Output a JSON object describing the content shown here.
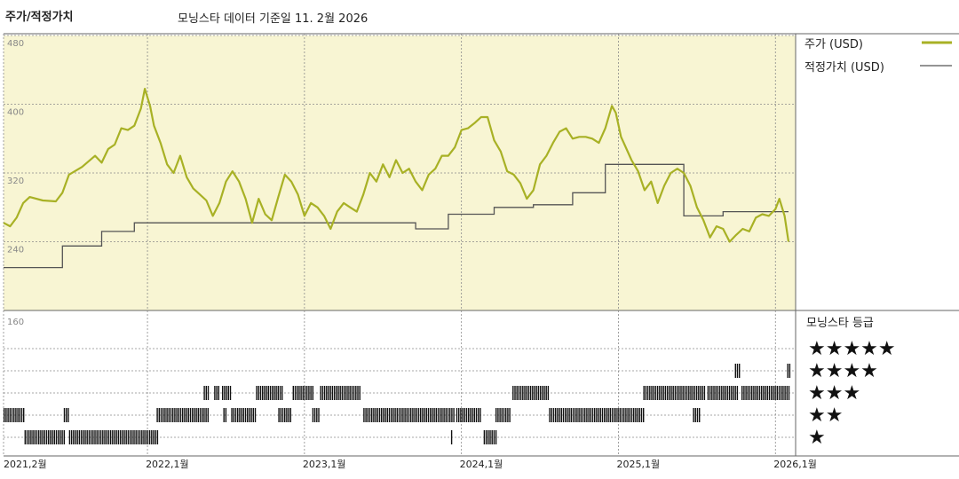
{
  "header": {
    "title": "주가/적정가치",
    "subtitle": "모닝스타 데이터 기준일 11. 2월 2026"
  },
  "legend": {
    "price_label": "주가 (USD)",
    "fair_label": "적정가치 (USD)",
    "rating_title": "모닝스타 등급"
  },
  "colors": {
    "plot_bg": "#f8f5d3",
    "price": "#a8b125",
    "fair": "#555555",
    "grid": "#888888",
    "rating_bar": "#111111"
  },
  "chart_data": {
    "type": "line",
    "x_unit": "months since 2021-02",
    "x_tick_labels": [
      "2021,2월",
      "2022,1월",
      "2023,1월",
      "2024,1월",
      "2025,1월",
      "2026,1월"
    ],
    "x_tick_positions": [
      0,
      11,
      23,
      35,
      47,
      59
    ],
    "y_tick_labels": [
      "480",
      "400",
      "320",
      "240",
      "160"
    ],
    "ylim": [
      160,
      480
    ],
    "series": [
      {
        "name": "주가 (USD)",
        "points": [
          [
            0,
            262
          ],
          [
            0.5,
            258
          ],
          [
            1,
            268
          ],
          [
            1.5,
            285
          ],
          [
            2,
            292
          ],
          [
            3,
            288
          ],
          [
            4,
            287
          ],
          [
            4.5,
            297
          ],
          [
            5,
            318
          ],
          [
            6,
            327
          ],
          [
            7,
            340
          ],
          [
            7.5,
            332
          ],
          [
            8,
            348
          ],
          [
            8.5,
            353
          ],
          [
            9,
            372
          ],
          [
            9.5,
            370
          ],
          [
            10,
            375
          ],
          [
            10.5,
            395
          ],
          [
            10.8,
            418
          ],
          [
            11.2,
            398
          ],
          [
            11.5,
            375
          ],
          [
            12,
            355
          ],
          [
            12.5,
            330
          ],
          [
            13,
            320
          ],
          [
            13.5,
            340
          ],
          [
            14,
            315
          ],
          [
            14.5,
            302
          ],
          [
            15,
            295
          ],
          [
            15.5,
            288
          ],
          [
            16,
            270
          ],
          [
            16.5,
            285
          ],
          [
            17,
            310
          ],
          [
            17.5,
            322
          ],
          [
            18,
            310
          ],
          [
            18.5,
            290
          ],
          [
            19,
            262
          ],
          [
            19.5,
            290
          ],
          [
            20,
            272
          ],
          [
            20.5,
            265
          ],
          [
            21,
            292
          ],
          [
            21.5,
            318
          ],
          [
            22,
            310
          ],
          [
            22.5,
            295
          ],
          [
            23,
            270
          ],
          [
            23.5,
            285
          ],
          [
            24,
            280
          ],
          [
            24.5,
            270
          ],
          [
            25,
            255
          ],
          [
            25.5,
            275
          ],
          [
            26,
            285
          ],
          [
            26.5,
            280
          ],
          [
            27,
            275
          ],
          [
            27.5,
            295
          ],
          [
            28,
            320
          ],
          [
            28.5,
            310
          ],
          [
            29,
            330
          ],
          [
            29.5,
            315
          ],
          [
            30,
            335
          ],
          [
            30.5,
            320
          ],
          [
            31,
            325
          ],
          [
            31.5,
            310
          ],
          [
            32,
            300
          ],
          [
            32.5,
            318
          ],
          [
            33,
            325
          ],
          [
            33.5,
            340
          ],
          [
            34,
            340
          ],
          [
            34.5,
            350
          ],
          [
            35,
            370
          ],
          [
            35.5,
            372
          ],
          [
            36,
            378
          ],
          [
            36.5,
            385
          ],
          [
            37,
            385
          ],
          [
            37.5,
            358
          ],
          [
            38,
            345
          ],
          [
            38.5,
            322
          ],
          [
            39,
            318
          ],
          [
            39.5,
            308
          ],
          [
            40,
            290
          ],
          [
            40.5,
            300
          ],
          [
            41,
            330
          ],
          [
            41.5,
            340
          ],
          [
            42,
            355
          ],
          [
            42.5,
            368
          ],
          [
            43,
            372
          ],
          [
            43.5,
            360
          ],
          [
            44,
            362
          ],
          [
            44.5,
            362
          ],
          [
            45,
            360
          ],
          [
            45.5,
            355
          ],
          [
            46,
            372
          ],
          [
            46.5,
            398
          ],
          [
            46.8,
            390
          ],
          [
            47.2,
            362
          ],
          [
            47.5,
            352
          ],
          [
            48,
            335
          ],
          [
            48.5,
            322
          ],
          [
            49,
            300
          ],
          [
            49.5,
            310
          ],
          [
            50,
            285
          ],
          [
            50.5,
            305
          ],
          [
            51,
            320
          ],
          [
            51.5,
            325
          ],
          [
            52,
            320
          ],
          [
            52.5,
            305
          ],
          [
            53,
            280
          ],
          [
            53.5,
            265
          ],
          [
            54,
            245
          ],
          [
            54.5,
            258
          ],
          [
            55,
            255
          ],
          [
            55.5,
            240
          ],
          [
            56,
            248
          ],
          [
            56.5,
            255
          ],
          [
            57,
            252
          ],
          [
            57.5,
            268
          ],
          [
            58,
            272
          ],
          [
            58.5,
            270
          ],
          [
            59,
            278
          ],
          [
            59.3,
            290
          ],
          [
            59.7,
            270
          ],
          [
            60,
            240
          ]
        ]
      },
      {
        "name": "적정가치 (USD)",
        "points": [
          [
            0,
            210
          ],
          [
            4.5,
            210
          ],
          [
            4.5,
            235
          ],
          [
            7.5,
            235
          ],
          [
            7.5,
            252
          ],
          [
            10,
            252
          ],
          [
            10,
            262
          ],
          [
            31.5,
            262
          ],
          [
            31.5,
            255
          ],
          [
            34,
            255
          ],
          [
            34,
            272
          ],
          [
            37.5,
            272
          ],
          [
            37.5,
            280
          ],
          [
            40.5,
            280
          ],
          [
            40.5,
            283
          ],
          [
            43.5,
            283
          ],
          [
            43.5,
            297
          ],
          [
            46,
            297
          ],
          [
            46,
            330
          ],
          [
            52,
            330
          ],
          [
            52,
            270
          ],
          [
            55,
            270
          ],
          [
            55,
            275
          ],
          [
            60,
            275
          ]
        ]
      }
    ],
    "ratings": {
      "scale_labels": [
        "★★★★★",
        "★★★★",
        "★★★",
        "★★",
        "★"
      ],
      "levels": [
        5,
        4,
        3,
        2,
        1
      ],
      "segments": [
        {
          "stars": 2,
          "from": 0,
          "to": 1.6
        },
        {
          "stars": 1,
          "from": 1.6,
          "to": 4.6
        },
        {
          "stars": 2,
          "from": 4.6,
          "to": 4.9
        },
        {
          "stars": 1,
          "from": 5.0,
          "to": 11.8
        },
        {
          "stars": 2,
          "from": 11.7,
          "to": 15.6
        },
        {
          "stars": 3,
          "from": 15.3,
          "to": 15.6
        },
        {
          "stars": 3,
          "from": 16.1,
          "to": 16.4
        },
        {
          "stars": 3,
          "from": 16.7,
          "to": 17.4
        },
        {
          "stars": 2,
          "from": 16.8,
          "to": 17.0
        },
        {
          "stars": 2,
          "from": 17.4,
          "to": 19.2
        },
        {
          "stars": 3,
          "from": 19.3,
          "to": 21.3
        },
        {
          "stars": 2,
          "from": 21.0,
          "to": 21.9
        },
        {
          "stars": 3,
          "from": 22.1,
          "to": 23.7
        },
        {
          "stars": 2,
          "from": 23.6,
          "to": 24.1
        },
        {
          "stars": 3,
          "from": 24.2,
          "to": 27.2
        },
        {
          "stars": 2,
          "from": 27.5,
          "to": 34.4
        },
        {
          "stars": 2,
          "from": 34.6,
          "to": 36.4
        },
        {
          "stars": 1,
          "from": 34.2,
          "to": 34.3
        },
        {
          "stars": 1,
          "from": 36.7,
          "to": 37.6
        },
        {
          "stars": 2,
          "from": 37.6,
          "to": 38.7
        },
        {
          "stars": 3,
          "from": 38.9,
          "to": 41.6
        },
        {
          "stars": 2,
          "from": 41.7,
          "to": 49.0
        },
        {
          "stars": 3,
          "from": 48.9,
          "to": 53.6
        },
        {
          "stars": 2,
          "from": 52.7,
          "to": 53.2
        },
        {
          "stars": 3,
          "from": 53.8,
          "to": 56.1
        },
        {
          "stars": 4,
          "from": 55.9,
          "to": 56.2
        },
        {
          "stars": 3,
          "from": 56.4,
          "to": 60.0
        },
        {
          "stars": 4,
          "from": 59.9,
          "to": 60.1
        }
      ]
    }
  }
}
